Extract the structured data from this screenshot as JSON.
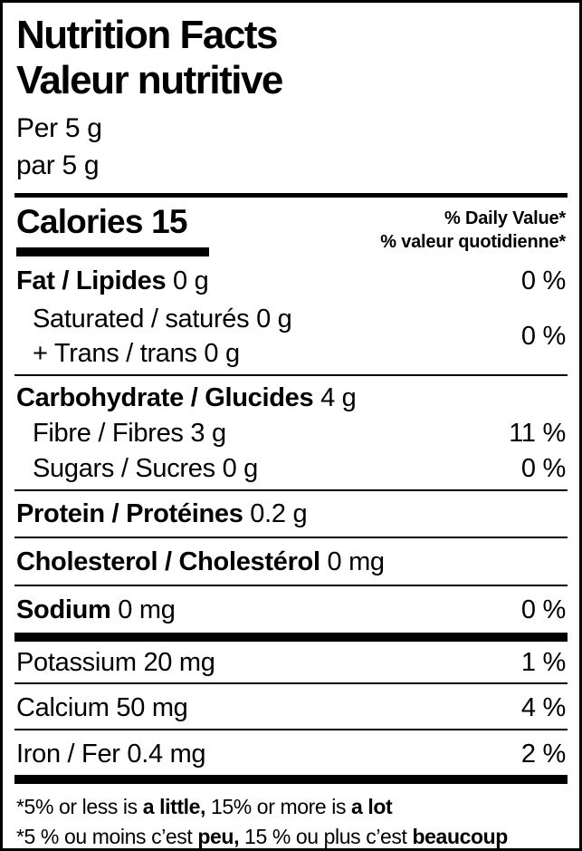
{
  "colors": {
    "ink": "#000000",
    "paper": "#ffffff"
  },
  "label": {
    "title_en": "Nutrition Facts",
    "title_fr": "Valeur nutritive",
    "serving_en": "Per 5 g",
    "serving_fr": "par 5 g",
    "calories": "Calories 15",
    "dv_header_en": "% Daily Value*",
    "dv_header_fr": "% valeur quotidienne*",
    "rows": {
      "fat": {
        "name": "Fat / Lipides",
        "amount": " 0 g",
        "dv": "0 %"
      },
      "saturated_trans": {
        "line1": "Saturated / saturés 0 g",
        "line2": "+ Trans / trans 0 g",
        "dv": "0 %"
      },
      "carbohydrate": {
        "name": "Carbohydrate / Glucides",
        "amount": " 4 g"
      },
      "fibre": {
        "name": "Fibre / Fibres 3 g",
        "dv": "11 %"
      },
      "sugars": {
        "name": "Sugars / Sucres 0 g",
        "dv": "0 %"
      },
      "protein": {
        "name": "Protein / Protéines",
        "amount": " 0.2 g"
      },
      "cholesterol": {
        "name": "Cholesterol / Cholestérol",
        "amount": " 0 mg"
      },
      "sodium": {
        "name": "Sodium",
        "amount": " 0 mg",
        "dv": "0 %"
      },
      "potassium": {
        "name": "Potassium 20 mg",
        "dv": "1 %"
      },
      "calcium": {
        "name": "Calcium 50 mg",
        "dv": "4 %"
      },
      "iron": {
        "name": "Iron / Fer 0.4 mg",
        "dv": "2 %"
      }
    },
    "footnote_en": {
      "t1": "*5% or less is ",
      "b1": "a little,",
      "t2": " 15% or more is ",
      "b2": "a lot"
    },
    "footnote_fr": {
      "t1": "*5 % ou moins c’est ",
      "b1": "peu,",
      "t2": " 15 % ou plus c’est ",
      "b2": "beaucoup"
    }
  }
}
